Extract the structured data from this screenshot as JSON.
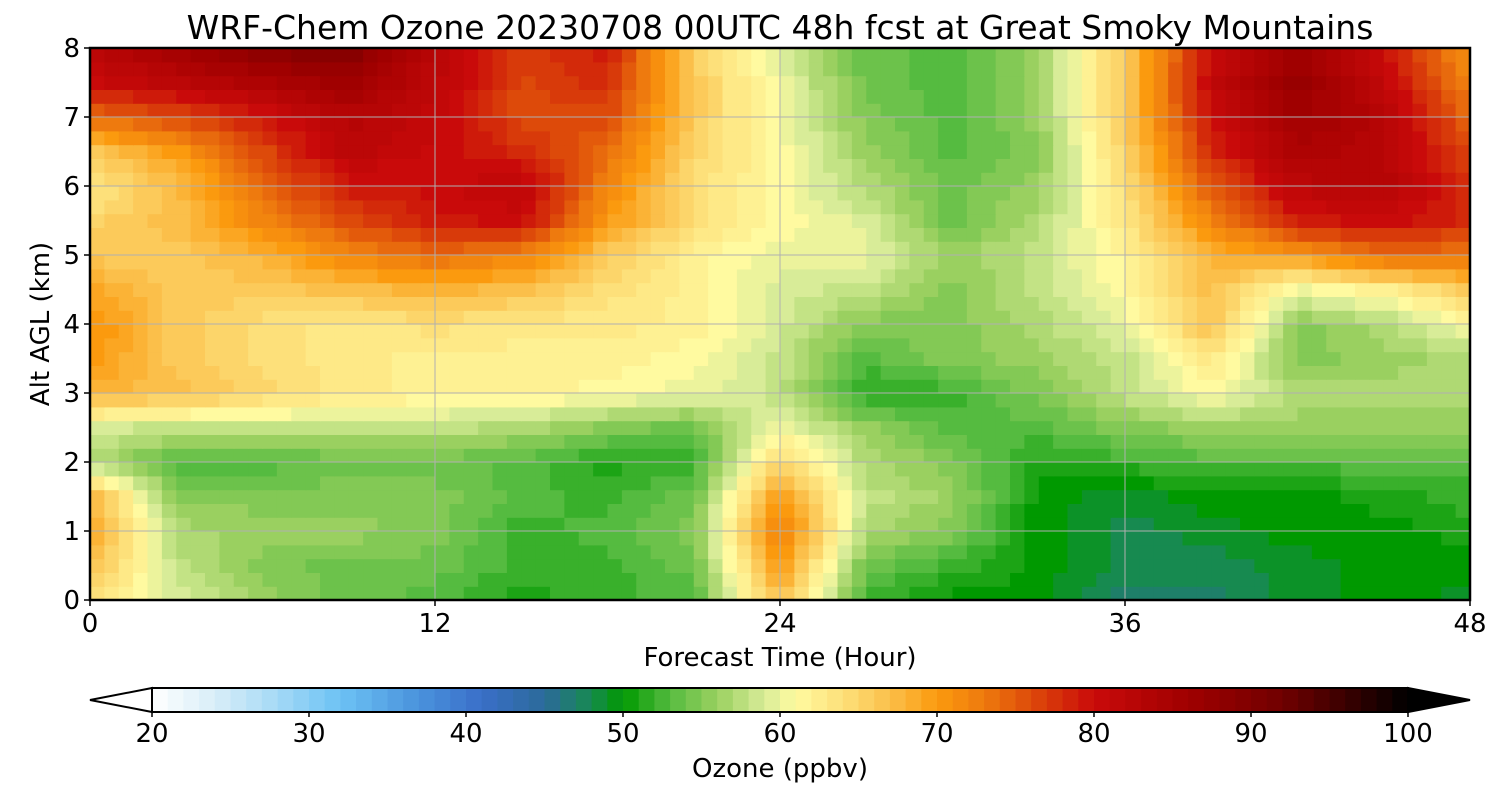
{
  "chart_data": {
    "type": "heatmap",
    "title": "WRF-Chem Ozone  20230708 00UTC 48h fcst at Great Smoky Mountains",
    "xlabel": "Forecast Time (Hour)",
    "ylabel": "Alt AGL (km)",
    "xlim": [
      0,
      48
    ],
    "ylim": [
      0,
      8
    ],
    "xticks": [
      0,
      12,
      24,
      36,
      48
    ],
    "yticks": [
      0,
      1,
      2,
      3,
      4,
      5,
      6,
      7,
      8
    ],
    "grid": true,
    "x": [
      0,
      3,
      6,
      9,
      12,
      15,
      18,
      21,
      24,
      27,
      30,
      33,
      36,
      39,
      42,
      45,
      48
    ],
    "y": [
      0,
      0.5,
      1,
      1.5,
      2,
      2.5,
      3,
      3.5,
      4,
      4.5,
      5,
      5.5,
      6,
      6.5,
      7,
      7.5,
      8
    ],
    "z_rows_by_altitude": [
      [
        64,
        59,
        56,
        54,
        53,
        51,
        52,
        53,
        67,
        52,
        50,
        50,
        47,
        47,
        49,
        50,
        49
      ],
      [
        67,
        58,
        55,
        54,
        54,
        52,
        52,
        54,
        70,
        54,
        52,
        50,
        48,
        48,
        49,
        50,
        50
      ],
      [
        69,
        57,
        56,
        56,
        55,
        52,
        53,
        55,
        73,
        57,
        55,
        50,
        48,
        49,
        50,
        50,
        51
      ],
      [
        68,
        55,
        55,
        55,
        55,
        53,
        52,
        54,
        70,
        58,
        56,
        50,
        49,
        50,
        50,
        51,
        52
      ],
      [
        57,
        53,
        53,
        54,
        54,
        53,
        51,
        52,
        65,
        57,
        55,
        51,
        52,
        53,
        53,
        53,
        53
      ],
      [
        59,
        58,
        58,
        58,
        58,
        57,
        55,
        54,
        60,
        56,
        53,
        53,
        55,
        56,
        56,
        56,
        56
      ],
      [
        68,
        67,
        65,
        63,
        62,
        62,
        61,
        60,
        58,
        51,
        52,
        55,
        58,
        61,
        57,
        57,
        57
      ],
      [
        70,
        66,
        64,
        63,
        62,
        62,
        62,
        61,
        58,
        53,
        55,
        56,
        58,
        63,
        55,
        56,
        57
      ],
      [
        71,
        66,
        64,
        63,
        64,
        63,
        63,
        62,
        59,
        55,
        55,
        57,
        60,
        67,
        55,
        57,
        61
      ],
      [
        69,
        66,
        66,
        67,
        68,
        67,
        64,
        62,
        59,
        58,
        55,
        58,
        61,
        67,
        60,
        62,
        66
      ],
      [
        66,
        66,
        68,
        72,
        74,
        72,
        66,
        62,
        60,
        60,
        56,
        58,
        62,
        68,
        70,
        74,
        73
      ],
      [
        65,
        67,
        72,
        76,
        79,
        80,
        70,
        64,
        61,
        59,
        54,
        57,
        63,
        72,
        79,
        80,
        78
      ],
      [
        63,
        67,
        74,
        79,
        80,
        82,
        72,
        64,
        61,
        57,
        54,
        56,
        64,
        75,
        82,
        83,
        78
      ],
      [
        66,
        70,
        76,
        82,
        80,
        78,
        74,
        65,
        61,
        56,
        53,
        55,
        65,
        78,
        84,
        83,
        76
      ],
      [
        74,
        76,
        79,
        83,
        81,
        76,
        76,
        66,
        60,
        55,
        53,
        56,
        66,
        80,
        86,
        83,
        74
      ],
      [
        80,
        82,
        84,
        86,
        82,
        76,
        78,
        66,
        60,
        54,
        53,
        56,
        66,
        81,
        87,
        81,
        72
      ],
      [
        82,
        86,
        89,
        90,
        82,
        77,
        79,
        66,
        59,
        54,
        53,
        56,
        66,
        80,
        86,
        80,
        71
      ]
    ],
    "colorbar": {
      "label": "Ozone  (ppbv)",
      "min": 20,
      "max": 100,
      "ticks": [
        "20",
        "30",
        "40",
        "50",
        "60",
        "70",
        "80",
        "90",
        "100"
      ],
      "extend": "both",
      "stops": [
        {
          "v": 20,
          "c": "#ffffff"
        },
        {
          "v": 24,
          "c": "#d8eef8"
        },
        {
          "v": 28,
          "c": "#a4d9f6"
        },
        {
          "v": 32,
          "c": "#6cc2f4"
        },
        {
          "v": 37,
          "c": "#4a92dc"
        },
        {
          "v": 41,
          "c": "#3a6ec8"
        },
        {
          "v": 45,
          "c": "#2b6a9a"
        },
        {
          "v": 48,
          "c": "#178a50"
        },
        {
          "v": 50,
          "c": "#009900"
        },
        {
          "v": 53,
          "c": "#55bb40"
        },
        {
          "v": 56,
          "c": "#9ad060"
        },
        {
          "v": 59,
          "c": "#d8ec98"
        },
        {
          "v": 61,
          "c": "#fffaa0"
        },
        {
          "v": 64,
          "c": "#fde07a"
        },
        {
          "v": 67,
          "c": "#fbbf4a"
        },
        {
          "v": 70,
          "c": "#fb9a0e"
        },
        {
          "v": 73,
          "c": "#ee7a0e"
        },
        {
          "v": 76,
          "c": "#dd4a0a"
        },
        {
          "v": 80,
          "c": "#c90a0a"
        },
        {
          "v": 86,
          "c": "#a00000"
        },
        {
          "v": 92,
          "c": "#700000"
        },
        {
          "v": 96,
          "c": "#3a0000"
        },
        {
          "v": 100,
          "c": "#000000"
        }
      ]
    }
  }
}
